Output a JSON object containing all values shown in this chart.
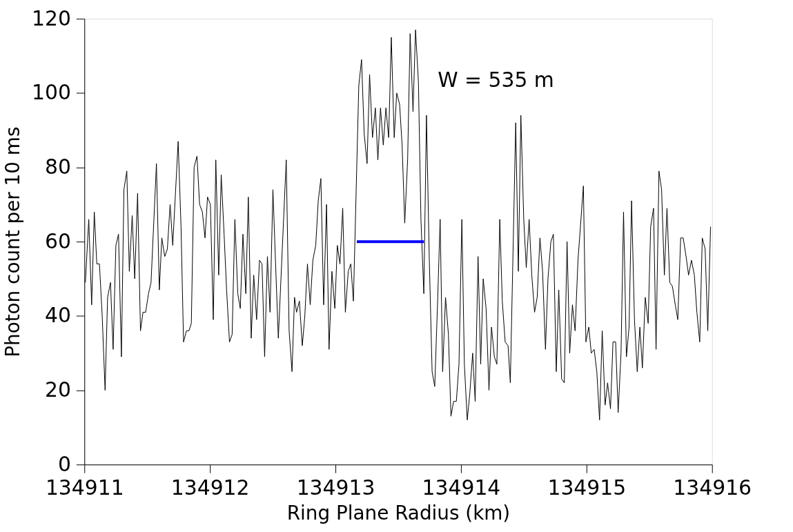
{
  "chart_data": {
    "type": "line",
    "xlabel": "Ring Plane Radius (km)",
    "ylabel": "Photon count per 10 ms",
    "xlim": [
      134911,
      134916
    ],
    "xticks": [
      134911,
      134912,
      134913,
      134914,
      134915,
      134916
    ],
    "ylim": [
      0,
      120
    ],
    "yticks": [
      0,
      20,
      40,
      60,
      80,
      100,
      120
    ],
    "grid": false,
    "annotations": [
      "W = 535 m"
    ],
    "series": [
      {
        "color": "#000000",
        "x": [
          134911.008,
          134911.035,
          134911.058,
          134911.079,
          134911.099,
          134911.12,
          134911.142,
          134911.165,
          134911.185,
          134911.208,
          134911.229,
          134911.251,
          134911.272,
          134911.295,
          134911.315,
          134911.338,
          134911.358,
          134911.381,
          134911.401,
          134911.424,
          134911.447,
          134911.467,
          134911.488,
          134911.511,
          134911.531,
          134911.574,
          134911.597,
          134911.617,
          134911.64,
          134911.661,
          134911.683,
          134911.704,
          134911.747,
          134911.77,
          134911.79,
          134911.813,
          134911.833,
          134911.852,
          134911.874,
          134911.897,
          134911.918,
          134911.94,
          134911.961,
          134911.981,
          134912.004,
          134912.027,
          134912.047,
          134912.07,
          134912.09,
          134912.113,
          134912.133,
          134912.156,
          134912.177,
          134912.199,
          134912.222,
          134912.242,
          134912.263,
          134912.286,
          134912.306,
          134912.329,
          134912.349,
          134912.372,
          134912.395,
          134912.415,
          134912.436,
          134912.458,
          134912.479,
          134912.502,
          134912.522,
          134912.545,
          134912.608,
          134912.631,
          134912.654,
          134912.674,
          134912.69,
          134912.713,
          134912.736,
          134912.756,
          134912.777,
          134912.799,
          134912.82,
          134912.843,
          134912.863,
          134912.884,
          134912.906,
          134912.929,
          134912.949,
          134912.972,
          134912.995,
          134913.015,
          134913.036,
          134913.058,
          134913.079,
          134913.102,
          134913.122,
          134913.143,
          134913.186,
          134913.208,
          134913.229,
          134913.252,
          134913.272,
          134913.295,
          134913.318,
          134913.338,
          134913.359,
          134913.381,
          134913.402,
          134913.424,
          134913.445,
          134913.468,
          134913.488,
          134913.511,
          134913.531,
          134913.552,
          134913.575,
          134913.595,
          134913.618,
          134913.638,
          134913.661,
          134913.681,
          134913.704,
          134913.725,
          134913.747,
          134913.77,
          134913.791,
          134913.813,
          134913.834,
          134913.854,
          134913.877,
          134913.9,
          134913.92,
          134913.941,
          134913.963,
          134913.984,
          134914.007,
          134914.027,
          134914.05,
          134914.07,
          134914.093,
          134914.113,
          134914.136,
          134914.157,
          134914.177,
          134914.2,
          134914.223,
          134914.243,
          134914.266,
          134914.286,
          134914.309,
          134914.329,
          134914.352,
          134914.375,
          134914.393,
          134914.436,
          134914.457,
          134914.477,
          134914.5,
          134914.52,
          134914.543,
          134914.564,
          134914.586,
          134914.607,
          134914.629,
          134914.65,
          134914.673,
          134914.693,
          134914.716,
          134914.736,
          134914.759,
          134914.779,
          134914.802,
          134914.823,
          134914.845,
          134914.866,
          134914.888,
          134914.909,
          134914.932,
          134914.975,
          134914.995,
          134915.018,
          134915.038,
          134915.061,
          134915.082,
          134915.104,
          134915.125,
          134915.148,
          134915.168,
          134915.191,
          134915.211,
          134915.232,
          134915.252,
          134915.275,
          134915.295,
          134915.318,
          134915.339,
          134915.359,
          134915.382,
          134915.404,
          134915.425,
          134915.445,
          134915.468,
          134915.491,
          134915.511,
          134915.534,
          134915.554,
          134915.577,
          134915.598,
          134915.62,
          134915.641,
          134915.663,
          134915.684,
          134915.707,
          134915.727,
          134915.75,
          134915.77,
          134915.793,
          134915.813,
          134915.836,
          134915.859,
          134915.879,
          134915.902,
          134915.922,
          134915.945,
          134915.966,
          134915.988
        ],
        "values": [
          49,
          66,
          43,
          68,
          54,
          54,
          40,
          20,
          45,
          49,
          31,
          59,
          62,
          29,
          74,
          79,
          52,
          67,
          50,
          73,
          36,
          41,
          41,
          46,
          49,
          81,
          47,
          61,
          56,
          58,
          70,
          59,
          87,
          64,
          33,
          36,
          36,
          38,
          80,
          83,
          70,
          68,
          61,
          72,
          70,
          39,
          82,
          51,
          78,
          62,
          47,
          33,
          35,
          66,
          46,
          42,
          62,
          46,
          72,
          34,
          51,
          39,
          55,
          54,
          29,
          56,
          41,
          74,
          55,
          34,
          82,
          36,
          25,
          45,
          41,
          44,
          32,
          40,
          54,
          43,
          55,
          59,
          71,
          77,
          43,
          70,
          31,
          52,
          42,
          59,
          54,
          69,
          41,
          52,
          54,
          44,
          102,
          109,
          89,
          81,
          105,
          88,
          96,
          82,
          96,
          86,
          96,
          88,
          115,
          88,
          100,
          97,
          86,
          65,
          82,
          116,
          95,
          117,
          103,
          66,
          46,
          94,
          56,
          25,
          21,
          43,
          66,
          25,
          45,
          35,
          13,
          17,
          17,
          27,
          66,
          27,
          12,
          19,
          30,
          17,
          56,
          27,
          50,
          42,
          20,
          37,
          29,
          27,
          66,
          44,
          33,
          32,
          22,
          92,
          52,
          94,
          66,
          53,
          66,
          51,
          41,
          45,
          61,
          52,
          31,
          50,
          60,
          62,
          25,
          47,
          23,
          22,
          60,
          30,
          43,
          36,
          55,
          75,
          33,
          37,
          30,
          31,
          25,
          12,
          36,
          16,
          22,
          15,
          33,
          33,
          14,
          30,
          68,
          29,
          37,
          71,
          39,
          25,
          37,
          26,
          45,
          38,
          64,
          69,
          31,
          79,
          74,
          51,
          69,
          49,
          48,
          43,
          39,
          61,
          61,
          56,
          51,
          55,
          51,
          41,
          33,
          61,
          58,
          36,
          64
        ]
      },
      {
        "color": "#0000ff",
        "x": [
          134913.17,
          134913.705
        ],
        "values": [
          60,
          60
        ]
      }
    ]
  }
}
